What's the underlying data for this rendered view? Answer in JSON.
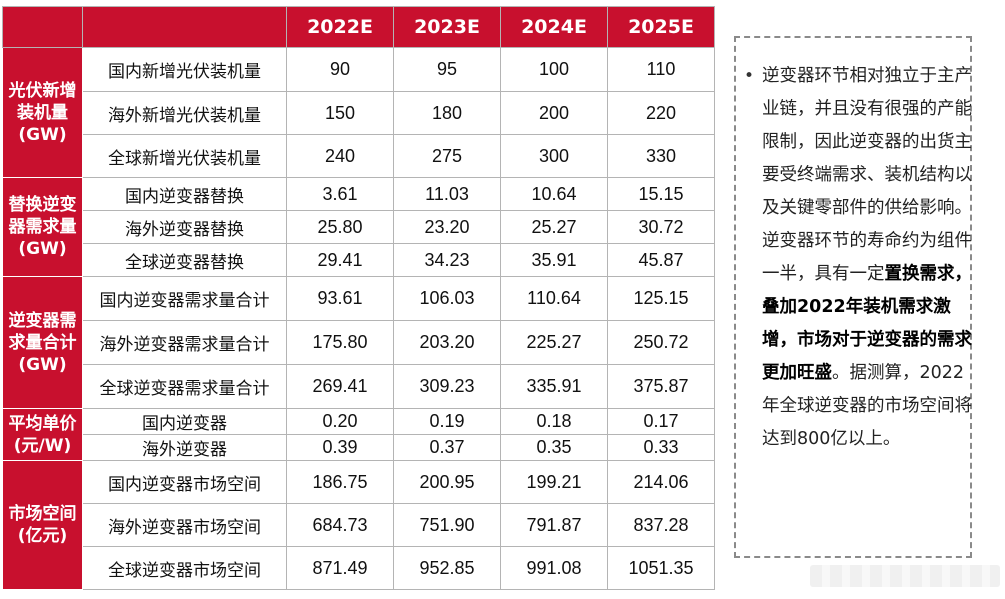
{
  "years": [
    "2022E",
    "2023E",
    "2024E",
    "2025E"
  ],
  "groups": [
    {
      "category": "光伏新增\n装机量\n(GW)",
      "rows": [
        {
          "label": "国内新增光伏装机量",
          "values": [
            "90",
            "95",
            "100",
            "110"
          ]
        },
        {
          "label": "海外新增光伏装机量",
          "values": [
            "150",
            "180",
            "200",
            "220"
          ]
        },
        {
          "label": "全球新增光伏装机量",
          "values": [
            "240",
            "275",
            "300",
            "330"
          ]
        }
      ]
    },
    {
      "category": "替换逆变\n器需求量\n(GW)",
      "rows": [
        {
          "label": "国内逆变器替换",
          "values": [
            "3.61",
            "11.03",
            "10.64",
            "15.15"
          ]
        },
        {
          "label": "海外逆变器替换",
          "values": [
            "25.80",
            "23.20",
            "25.27",
            "30.72"
          ]
        },
        {
          "label": "全球逆变器替换",
          "values": [
            "29.41",
            "34.23",
            "35.91",
            "45.87"
          ]
        }
      ]
    },
    {
      "category": "逆变器需\n求量合计\n(GW)",
      "rows": [
        {
          "label": "国内逆变器需求量合计",
          "values": [
            "93.61",
            "106.03",
            "110.64",
            "125.15"
          ]
        },
        {
          "label": "海外逆变器需求量合计",
          "values": [
            "175.80",
            "203.20",
            "225.27",
            "250.72"
          ]
        },
        {
          "label": "全球逆变器需求量合计",
          "values": [
            "269.41",
            "309.23",
            "335.91",
            "375.87"
          ]
        }
      ]
    },
    {
      "category": "平均单价\n(元/W)",
      "rows": [
        {
          "label": "国内逆变器",
          "values": [
            "0.20",
            "0.19",
            "0.18",
            "0.17"
          ]
        },
        {
          "label": "海外逆变器",
          "values": [
            "0.39",
            "0.37",
            "0.35",
            "0.33"
          ]
        }
      ]
    },
    {
      "category": "市场空间\n(亿元)",
      "rows": [
        {
          "label": "国内逆变器市场空间",
          "values": [
            "186.75",
            "200.95",
            "199.21",
            "214.06"
          ]
        },
        {
          "label": "海外逆变器市场空间",
          "values": [
            "684.73",
            "751.90",
            "791.87",
            "837.28"
          ]
        },
        {
          "label": "全球逆变器市场空间",
          "values": [
            "871.49",
            "952.85",
            "991.08",
            "1051.35"
          ]
        }
      ]
    }
  ],
  "note": {
    "bullet": "•",
    "text1": "逆变器环节相对独立于主产业链，并且没有很强的产能限制，因此逆变器的出货主要受终端需求、装机结构以及关键零部件的供给影响。逆变器环节的寿命约为组件一半，具有一定",
    "bold": "置换需求，叠加2022年装机需求激增，市场对于逆变器的需求更加旺盛",
    "text2": "。据测算，2022年全球逆变器的市场空间将达到800亿以上。"
  }
}
